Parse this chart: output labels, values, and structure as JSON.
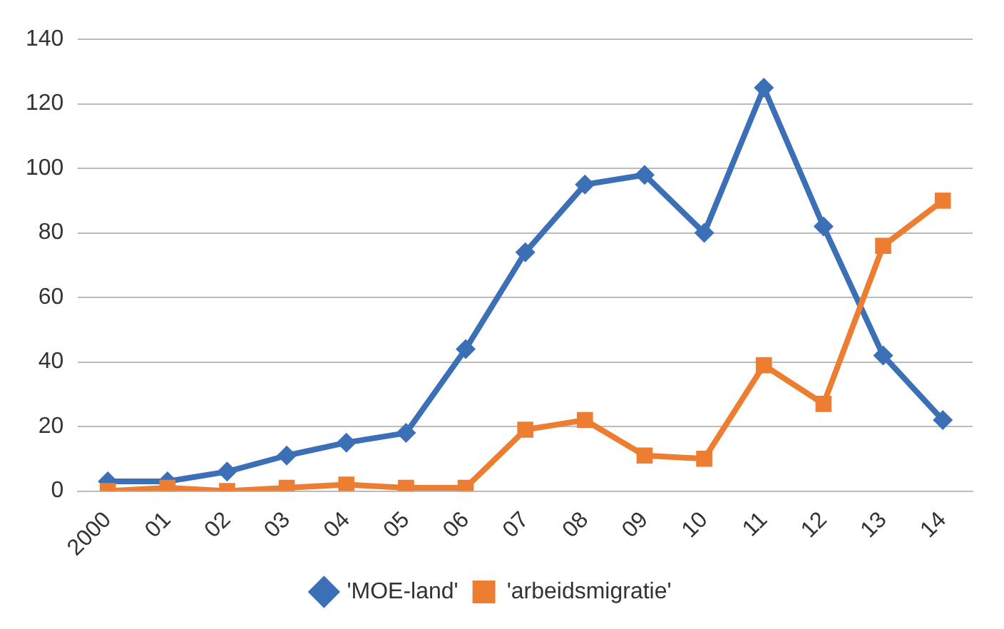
{
  "chart_data": {
    "type": "line",
    "categories": [
      "2000",
      "01",
      "02",
      "03",
      "04",
      "05",
      "06",
      "07",
      "08",
      "09",
      "10",
      "11",
      "12",
      "13",
      "14"
    ],
    "series": [
      {
        "name": "'MOE-land'",
        "color": "#3b6fb6",
        "marker": "diamond",
        "values": [
          3,
          3,
          6,
          11,
          15,
          18,
          44,
          74,
          95,
          98,
          80,
          125,
          82,
          42,
          22
        ]
      },
      {
        "name": "'arbeidsmigratie'",
        "color": "#ed7d31",
        "marker": "square",
        "values": [
          0,
          1,
          0,
          1,
          2,
          1,
          1,
          19,
          22,
          11,
          10,
          39,
          27,
          76,
          90
        ]
      }
    ],
    "ylim": [
      0,
      140
    ],
    "yticks": [
      0,
      20,
      40,
      60,
      80,
      100,
      120,
      140
    ],
    "grid": "y",
    "legend": "bottom",
    "line_style": "solid"
  }
}
